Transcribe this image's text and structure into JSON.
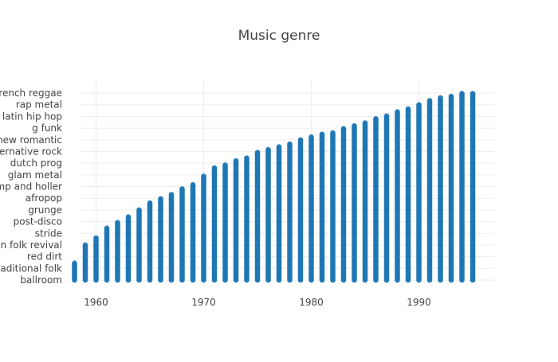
{
  "chart_data": {
    "type": "scatter",
    "title": "Music genre",
    "xlabel": "",
    "ylabel": "",
    "xlim": [
      1957,
      1997
    ],
    "x_ticks": [
      1960,
      1970,
      1980,
      1990
    ],
    "y_categories": [
      "ballroom",
      "traditional folk",
      "red dirt",
      "american folk revival",
      "stride",
      "post-disco",
      "grunge",
      "afropop",
      "stomp and holler",
      "glam metal",
      "dutch prog",
      "alternative rock",
      "new romantic",
      "g funk",
      "latin hip hop",
      "rap metal",
      "french reggae"
    ],
    "marker_color": "#1f77b4",
    "grid": true,
    "legend": "none",
    "series": [
      {
        "x": [
          1958,
          1959,
          1960,
          1961,
          1962,
          1963,
          1964,
          1965,
          1966,
          1967,
          1968,
          1969,
          1970,
          1971,
          1972,
          1973,
          1974,
          1975,
          1976,
          1977,
          1978,
          1979,
          1980,
          1981,
          1982,
          1983,
          1984,
          1985,
          1986,
          1987,
          1988,
          1989,
          1990,
          1991,
          1992,
          1993,
          1994,
          1995
        ],
        "y_top": [
          1.5,
          3.0,
          3.7,
          4.5,
          5.0,
          5.5,
          6.0,
          6.6,
          7.0,
          7.4,
          7.8,
          8.2,
          8.9,
          9.7,
          9.9,
          10.2,
          10.5,
          11.0,
          11.2,
          11.4,
          11.7,
          12.0,
          12.3,
          12.5,
          12.7,
          13.0,
          13.3,
          13.5,
          13.8,
          14.1,
          14.4,
          14.7,
          15.0,
          15.4,
          15.6,
          15.8,
          16.0,
          16.0
        ]
      }
    ]
  }
}
